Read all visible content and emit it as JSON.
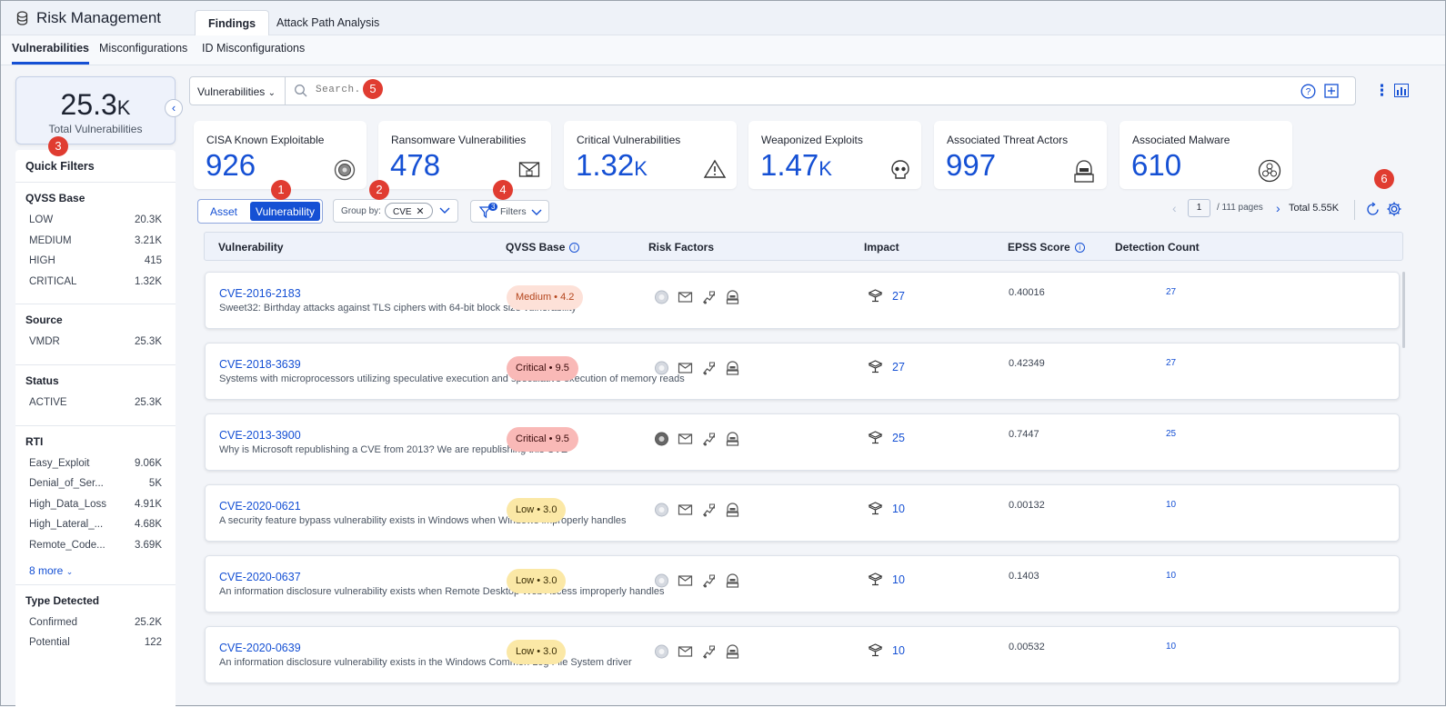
{
  "app": {
    "title": "Risk Management"
  },
  "tabs": [
    {
      "label": "Findings"
    },
    {
      "label": "Attack Path Analysis"
    }
  ],
  "subtabs": [
    {
      "label": "Vulnerabilities"
    },
    {
      "label": "Misconfigurations"
    },
    {
      "label": "ID Misconfigurations"
    }
  ],
  "total": {
    "value": "25.3",
    "suffix": "K",
    "label": "Total Vulnerabilities"
  },
  "quick_filters": {
    "title": "Quick Filters",
    "sections": [
      {
        "title": "QVSS Base",
        "items": [
          {
            "label": "LOW",
            "count": "20.3K"
          },
          {
            "label": "MEDIUM",
            "count": "3.21K"
          },
          {
            "label": "HIGH",
            "count": "415"
          },
          {
            "label": "CRITICAL",
            "count": "1.32K"
          }
        ]
      },
      {
        "title": "Source",
        "items": [
          {
            "label": "VMDR",
            "count": "25.3K"
          }
        ]
      },
      {
        "title": "Status",
        "items": [
          {
            "label": "ACTIVE",
            "count": "25.3K"
          }
        ]
      },
      {
        "title": "RTI",
        "items": [
          {
            "label": "Easy_Exploit",
            "count": "9.06K"
          },
          {
            "label": "Denial_of_Ser...",
            "count": "5K"
          },
          {
            "label": "High_Data_Loss",
            "count": "4.91K"
          },
          {
            "label": "High_Lateral_...",
            "count": "4.68K"
          },
          {
            "label": "Remote_Code...",
            "count": "3.69K"
          }
        ],
        "more": "8 more"
      },
      {
        "title": "Type Detected",
        "items": [
          {
            "label": "Confirmed",
            "count": "25.2K"
          },
          {
            "label": "Potential",
            "count": "122"
          }
        ]
      }
    ]
  },
  "search": {
    "scope": "Vulnerabilities",
    "placeholder": "Search..."
  },
  "stats": [
    {
      "label": "CISA Known Exploitable",
      "value": "926",
      "suffix": "",
      "icon": "cisa-seal-icon"
    },
    {
      "label": "Ransomware Vulnerabilities",
      "value": "478",
      "suffix": "",
      "icon": "ransomware-icon"
    },
    {
      "label": "Critical Vulnerabilities",
      "value": "1.32",
      "suffix": "K",
      "icon": "warning-icon"
    },
    {
      "label": "Weaponized Exploits",
      "value": "1.47",
      "suffix": "K",
      "icon": "skull-icon"
    },
    {
      "label": "Associated Threat Actors",
      "value": "997",
      "suffix": "",
      "icon": "hacker-icon"
    },
    {
      "label": "Associated Malware",
      "value": "610",
      "suffix": "",
      "icon": "biohazard-icon"
    }
  ],
  "toolbar": {
    "asset_label": "Asset",
    "vulnerability_label": "Vulnerability",
    "groupby_label": "Group by:",
    "groupby_chip": "CVE",
    "filters_label": "Filters",
    "filters_count": "3"
  },
  "pager": {
    "page": "1",
    "of_pages": "/ 111 pages",
    "total": "Total 5.55K"
  },
  "table": {
    "headers": {
      "vulnerability": "Vulnerability",
      "qvss": "QVSS Base",
      "risk": "Risk Factors",
      "impact": "Impact",
      "epss": "EPSS Score",
      "detection": "Detection Count"
    },
    "rows": [
      {
        "cve": "CVE-2016-2183",
        "desc": "Sweet32: Birthday attacks against TLS ciphers with 64-bit block size vulnerability",
        "severity": "Medium • 4.2",
        "sev_class": "medium",
        "impact": "27",
        "epss": "0.40016",
        "detections": "27"
      },
      {
        "cve": "CVE-2018-3639",
        "desc": "Systems with microprocessors utilizing speculative execution and speculative execution of memory reads",
        "severity": "Critical • 9.5",
        "sev_class": "critical",
        "impact": "27",
        "epss": "0.42349",
        "detections": "27"
      },
      {
        "cve": "CVE-2013-3900",
        "desc": "Why is Microsoft republishing a CVE from 2013? We are republishing this CVE",
        "severity": "Critical • 9.5",
        "sev_class": "critical",
        "impact": "25",
        "epss": "0.7447",
        "detections": "25"
      },
      {
        "cve": "CVE-2020-0621",
        "desc": "A security feature bypass vulnerability exists in Windows when Windows improperly handles",
        "severity": "Low • 3.0",
        "sev_class": "low",
        "impact": "10",
        "epss": "0.00132",
        "detections": "10"
      },
      {
        "cve": "CVE-2020-0637",
        "desc": "An information disclosure vulnerability exists when Remote Desktop Web Access improperly handles",
        "severity": "Low • 3.0",
        "sev_class": "low",
        "impact": "10",
        "epss": "0.1403",
        "detections": "10"
      },
      {
        "cve": "CVE-2020-0639",
        "desc": "An information disclosure vulnerability exists in the Windows Common Log File System driver",
        "severity": "Low • 3.0",
        "sev_class": "low",
        "impact": "10",
        "epss": "0.00532",
        "detections": "10"
      }
    ]
  },
  "callouts": [
    "1",
    "2",
    "3",
    "4",
    "5",
    "6"
  ],
  "colors": {
    "accent": "#1550d4",
    "callout": "#e03c31"
  }
}
